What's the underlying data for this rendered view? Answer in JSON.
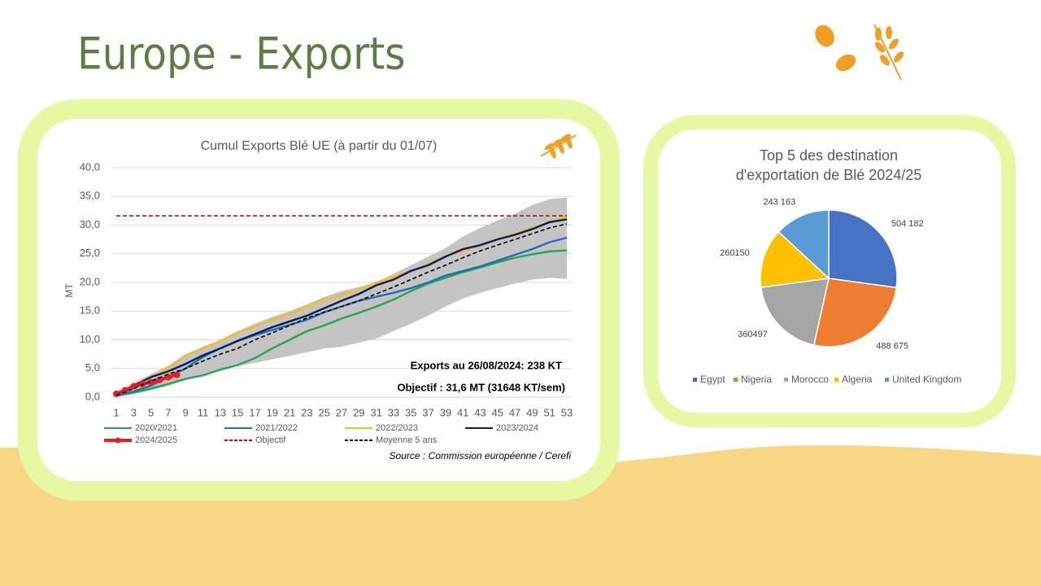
{
  "slide": {
    "title": "Europe - Exports"
  },
  "chart_data": [
    {
      "type": "line",
      "title": "Cumul Exports Blé UE (à partir du 01/07)",
      "y_label": "MT",
      "x": [
        1,
        3,
        5,
        7,
        9,
        11,
        13,
        15,
        17,
        19,
        21,
        23,
        25,
        27,
        29,
        31,
        33,
        35,
        37,
        39,
        41,
        43,
        45,
        47,
        49,
        51,
        53
      ],
      "xlim": [
        1,
        53
      ],
      "xticks": [
        1,
        3,
        5,
        7,
        9,
        11,
        13,
        15,
        17,
        19,
        21,
        23,
        25,
        27,
        29,
        31,
        33,
        35,
        37,
        39,
        41,
        43,
        45,
        47,
        49,
        51,
        53
      ],
      "ylim": [
        0,
        40
      ],
      "yticks": [
        {
          "value": 0,
          "label": "0,0"
        },
        {
          "value": 5,
          "label": "5,0"
        },
        {
          "value": 10,
          "label": "10,0"
        },
        {
          "value": 15,
          "label": "15,0"
        },
        {
          "value": 20,
          "label": "20,0"
        },
        {
          "value": 25,
          "label": "25,0"
        },
        {
          "value": 30,
          "label": "30,0"
        },
        {
          "value": 35,
          "label": "35,0"
        },
        {
          "value": 40,
          "label": "40,0"
        }
      ],
      "grid": true,
      "range_band": {
        "color": "#c4c4c4",
        "high": [
          0.8,
          2.5,
          4.0,
          5.5,
          7.5,
          8.8,
          10.0,
          11.5,
          12.8,
          14.0,
          15.0,
          16.2,
          17.5,
          18.5,
          19.2,
          20.0,
          21.5,
          23.0,
          24.5,
          26.0,
          28.0,
          29.5,
          30.8,
          32.0,
          33.5,
          34.5,
          34.8
        ],
        "low": [
          0,
          0.5,
          1.2,
          2.0,
          3.0,
          3.8,
          4.8,
          5.4,
          6.0,
          6.6,
          7.2,
          7.8,
          8.5,
          8.8,
          9.5,
          10.2,
          11.5,
          12.8,
          14.2,
          15.8,
          17.2,
          18.2,
          19.0,
          19.8,
          20.5,
          20.8,
          20.6
        ]
      },
      "series": [
        {
          "name": "2020/2021",
          "color": "#22a84a",
          "values": [
            0.3,
            0.8,
            1.5,
            2.3,
            3.2,
            3.8,
            4.8,
            5.6,
            6.8,
            8.5,
            10.0,
            11.5,
            12.5,
            13.7,
            14.7,
            15.8,
            17.0,
            18.5,
            19.8,
            20.8,
            21.8,
            22.6,
            23.5,
            24.3,
            24.9,
            25.4,
            25.6
          ]
        },
        {
          "name": "2021/2022",
          "color": "#1f6fbf",
          "values": [
            0.3,
            1.0,
            2.0,
            3.5,
            5.0,
            7.0,
            8.5,
            9.8,
            10.8,
            11.7,
            12.6,
            13.5,
            14.8,
            15.8,
            16.8,
            17.5,
            18.2,
            19.0,
            20.0,
            21.2,
            22.0,
            22.8,
            23.8,
            24.8,
            25.8,
            27.0,
            27.8
          ]
        },
        {
          "name": "2022/2023",
          "color": "#f5bd1f",
          "values": [
            0.5,
            2.0,
            3.5,
            5.0,
            7.3,
            8.5,
            9.8,
            11.2,
            12.3,
            13.5,
            14.5,
            15.7,
            17.0,
            17.8,
            18.8,
            20.0,
            21.0,
            22.0,
            23.2,
            24.5,
            25.5,
            26.5,
            27.5,
            28.5,
            29.5,
            30.5,
            31.5
          ]
        },
        {
          "name": "2023/2024",
          "color": "#0d1f4f",
          "values": [
            0.5,
            2.0,
            3.5,
            4.5,
            5.8,
            7.3,
            8.5,
            9.8,
            11.0,
            12.2,
            13.2,
            14.2,
            15.5,
            16.8,
            18.0,
            19.5,
            20.5,
            22.0,
            23.0,
            24.5,
            25.8,
            26.5,
            27.5,
            28.3,
            29.3,
            30.5,
            31.0
          ]
        },
        {
          "name": "2024/2025",
          "color": "#ee1c1c",
          "markers": true,
          "x": [
            1,
            2,
            3,
            4,
            5,
            6,
            7,
            8
          ],
          "values": [
            0.6,
            1.2,
            1.9,
            2.3,
            2.6,
            3.0,
            3.5,
            3.9
          ]
        },
        {
          "name": "Objectif",
          "color": "#e00000",
          "dash": true,
          "x": [
            1,
            53
          ],
          "values": [
            31.6,
            31.6
          ]
        },
        {
          "name": "Moyenne 5 ans",
          "color": "#000000",
          "dash": true,
          "values": [
            0.3,
            1.5,
            2.8,
            4.0,
            5.0,
            6.3,
            7.5,
            8.5,
            10.0,
            11.2,
            12.5,
            13.8,
            14.8,
            15.8,
            16.8,
            18.0,
            19.2,
            20.5,
            21.8,
            23.0,
            24.3,
            25.5,
            26.5,
            27.5,
            28.5,
            29.5,
            30.2
          ]
        }
      ],
      "annotations": [
        "Exports au 26/08/2024: 238 KT",
        "Objectif  : 31,6 MT  (31648 KT/sem)"
      ],
      "source": "Source : Commission européenne / Cerefi"
    },
    {
      "type": "pie",
      "title": [
        "Top 5 des destination",
        "d'exportation de Blé 2024/25"
      ],
      "categories": [
        "Egypt",
        "Nigeria",
        "Morocco",
        "Algeria",
        "United Kingdom"
      ],
      "values": [
        504182,
        488675,
        360497,
        260150,
        243163
      ],
      "value_labels": [
        "504 182",
        "488 675",
        "360497",
        "260150",
        "243 163"
      ],
      "colors": [
        "#4472c4",
        "#ed7d31",
        "#a5a5a5",
        "#ffc000",
        "#5b9bd5"
      ]
    }
  ]
}
